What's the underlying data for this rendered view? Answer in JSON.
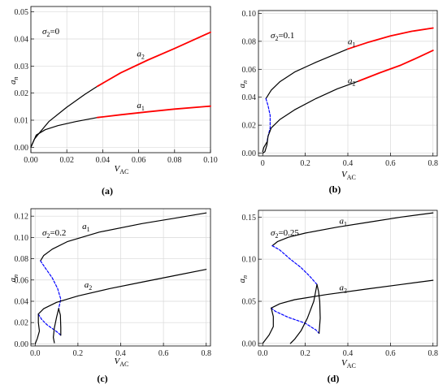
{
  "colors": {
    "stable": "#000000",
    "highlight": "#ff0000",
    "unstable": "#0000ff",
    "grid": "#d9d9d9"
  },
  "chart_data": [
    {
      "type": "line",
      "caption": "(a)",
      "xlabel": "V",
      "xlabel_sub": "AC",
      "ylabel": "a",
      "ylabel_sub": "n",
      "param": {
        "sym": "σ",
        "sub": "2",
        "val": "=0"
      },
      "xlim": [
        0,
        0.1
      ],
      "ylim": [
        -0.002,
        0.052
      ],
      "xticks": [
        0,
        0.02,
        0.04,
        0.06,
        0.08,
        0.1
      ],
      "xtick_labels": [
        "0.00",
        "0.02",
        "0.04",
        "0.06",
        "0.08",
        "0.10"
      ],
      "yticks": [
        0,
        0.01,
        0.02,
        0.03,
        0.04,
        0.05
      ],
      "ytick_labels": [
        "0.00",
        "0.01",
        "0.02",
        "0.03",
        "0.04",
        "0.05"
      ],
      "grid": true,
      "series": [
        {
          "name": "a",
          "sub": "1",
          "style": "stable",
          "points": [
            [
              0,
              0
            ],
            [
              0.003,
              0.0045
            ],
            [
              0.008,
              0.0065
            ],
            [
              0.015,
              0.008
            ],
            [
              0.025,
              0.0095
            ],
            [
              0.037,
              0.011
            ]
          ]
        },
        {
          "name": "a",
          "sub": "1",
          "style": "highlight",
          "points": [
            [
              0.037,
              0.011
            ],
            [
              0.05,
              0.012
            ],
            [
              0.065,
              0.0131
            ],
            [
              0.08,
              0.0141
            ],
            [
              0.1,
              0.0152
            ]
          ]
        },
        {
          "name": "a",
          "sub": "2",
          "style": "stable",
          "points": [
            [
              0,
              0
            ],
            [
              0.002,
              0.003
            ],
            [
              0.005,
              0.0055
            ],
            [
              0.01,
              0.0095
            ],
            [
              0.02,
              0.0148
            ],
            [
              0.03,
              0.0195
            ],
            [
              0.037,
              0.0225
            ]
          ]
        },
        {
          "name": "a",
          "sub": "2",
          "style": "highlight",
          "points": [
            [
              0.037,
              0.0225
            ],
            [
              0.05,
              0.0275
            ],
            [
              0.065,
              0.0322
            ],
            [
              0.08,
              0.0365
            ],
            [
              0.1,
              0.0425
            ]
          ]
        }
      ],
      "annotations": [
        {
          "text": "a",
          "sub": "2",
          "x": 0.059,
          "y": 0.0335
        },
        {
          "text": "a",
          "sub": "1",
          "x": 0.059,
          "y": 0.0145
        }
      ]
    },
    {
      "type": "line",
      "caption": "(b)",
      "xlabel": "V",
      "xlabel_sub": "AC",
      "ylabel": "a",
      "ylabel_sub": "n",
      "param": {
        "sym": "σ",
        "sub": "2",
        "val": "=0.1"
      },
      "xlim": [
        -0.02,
        0.82
      ],
      "ylim": [
        -0.002,
        0.102
      ],
      "xticks": [
        0,
        0.2,
        0.4,
        0.6,
        0.8
      ],
      "xtick_labels": [
        "0",
        "0.2",
        "0.4",
        "0.6",
        "0.8"
      ],
      "yticks": [
        0,
        0.02,
        0.04,
        0.06,
        0.08,
        0.1
      ],
      "ytick_labels": [
        "0.00",
        "0.02",
        "0.04",
        "0.06",
        "0.08",
        "0.10"
      ],
      "grid": true,
      "series": [
        {
          "name": "a",
          "sub": "1",
          "style": "stable",
          "points": [
            [
              0.015,
              0.039
            ],
            [
              0.04,
              0.045
            ],
            [
              0.08,
              0.051
            ],
            [
              0.15,
              0.058
            ],
            [
              0.25,
              0.065
            ],
            [
              0.4,
              0.0745
            ]
          ]
        },
        {
          "name": "a",
          "sub": "1",
          "style": "highlight",
          "points": [
            [
              0.4,
              0.0745
            ],
            [
              0.5,
              0.0795
            ],
            [
              0.6,
              0.0838
            ],
            [
              0.7,
              0.0872
            ],
            [
              0.8,
              0.0895
            ]
          ]
        },
        {
          "name": "a",
          "sub": "1",
          "style": "unstable",
          "points": [
            [
              0.015,
              0.039
            ],
            [
              0.025,
              0.034
            ],
            [
              0.035,
              0.027
            ],
            [
              0.035,
              0.018
            ],
            [
              0.025,
              0.012
            ],
            [
              0.02,
              0.008
            ]
          ]
        },
        {
          "name": "a",
          "sub": "2",
          "style": "stable",
          "points": [
            [
              0,
              0
            ],
            [
              0.01,
              0.001
            ],
            [
              0.02,
              0.006
            ],
            [
              0.025,
              0.012
            ],
            [
              0.04,
              0.018
            ],
            [
              0.08,
              0.024
            ],
            [
              0.15,
              0.031
            ],
            [
              0.25,
              0.039
            ],
            [
              0.35,
              0.046
            ],
            [
              0.45,
              0.0515
            ]
          ]
        },
        {
          "name": "a",
          "sub": "2",
          "style": "highlight",
          "points": [
            [
              0.45,
              0.0515
            ],
            [
              0.55,
              0.0575
            ],
            [
              0.65,
              0.063
            ],
            [
              0.73,
              0.0685
            ],
            [
              0.8,
              0.0735
            ]
          ]
        },
        {
          "name": "",
          "sub": "",
          "style": "stable",
          "points": [
            [
              0.02,
              0.008
            ],
            [
              0.005,
              0.004
            ],
            [
              0,
              0.001
            ]
          ]
        }
      ],
      "annotations": [
        {
          "text": "a",
          "sub": "1",
          "x": 0.4,
          "y": 0.078
        },
        {
          "text": "a",
          "sub": "2",
          "x": 0.4,
          "y": 0.05
        }
      ]
    },
    {
      "type": "line",
      "caption": "(c)",
      "xlabel": "V",
      "xlabel_sub": "AC",
      "ylabel": "a",
      "ylabel_sub": "n",
      "param": {
        "sym": "σ",
        "sub": "2",
        "val": "=0.2"
      },
      "xlim": [
        -0.02,
        0.82
      ],
      "ylim": [
        -0.002,
        0.127
      ],
      "xticks": [
        0,
        0.2,
        0.4,
        0.6,
        0.8
      ],
      "xtick_labels": [
        "0.0",
        "0.2",
        "0.4",
        "0.6",
        "0.8"
      ],
      "yticks": [
        0,
        0.02,
        0.04,
        0.06,
        0.08,
        0.1,
        0.12
      ],
      "ytick_labels": [
        "0.00",
        "0.02",
        "0.04",
        "0.06",
        "0.08",
        "0.10",
        "0.12"
      ],
      "grid": true,
      "series": [
        {
          "name": "a",
          "sub": "1",
          "style": "stable",
          "points": [
            [
              0.025,
              0.078
            ],
            [
              0.04,
              0.083
            ],
            [
              0.08,
              0.089
            ],
            [
              0.15,
              0.096
            ],
            [
              0.3,
              0.105
            ],
            [
              0.5,
              0.113
            ],
            [
              0.65,
              0.118
            ],
            [
              0.8,
              0.123
            ]
          ]
        },
        {
          "name": "a",
          "sub": "1",
          "style": "unstable",
          "points": [
            [
              0.025,
              0.078
            ],
            [
              0.045,
              0.072
            ],
            [
              0.08,
              0.062
            ],
            [
              0.105,
              0.052
            ],
            [
              0.12,
              0.042
            ],
            [
              0.11,
              0.033
            ]
          ]
        },
        {
          "name": "a",
          "sub": "2",
          "style": "stable",
          "points": [
            [
              0.015,
              0.028
            ],
            [
              0.04,
              0.033
            ],
            [
              0.1,
              0.039
            ],
            [
              0.2,
              0.045
            ],
            [
              0.35,
              0.052
            ],
            [
              0.5,
              0.058
            ],
            [
              0.65,
              0.064
            ],
            [
              0.8,
              0.07
            ]
          ]
        },
        {
          "name": "a",
          "sub": "2",
          "style": "unstable",
          "points": [
            [
              0.015,
              0.028
            ],
            [
              0.03,
              0.023
            ],
            [
              0.055,
              0.018
            ],
            [
              0.09,
              0.013
            ],
            [
              0.11,
              0.01
            ],
            [
              0.12,
              0.008
            ]
          ]
        },
        {
          "name": "",
          "sub": "",
          "style": "stable",
          "points": [
            [
              0.11,
              0.033
            ],
            [
              0.1,
              0.025
            ],
            [
              0.09,
              0.015
            ],
            [
              0.085,
              0.006
            ],
            [
              0.09,
              0.001
            ]
          ]
        },
        {
          "name": "",
          "sub": "",
          "style": "stable",
          "points": [
            [
              0.12,
              0.008
            ],
            [
              0.12,
              0.015
            ],
            [
              0.118,
              0.027
            ],
            [
              0.11,
              0.033
            ]
          ]
        },
        {
          "name": "",
          "sub": "",
          "style": "stable",
          "points": [
            [
              0,
              0
            ],
            [
              0.01,
              0.005
            ],
            [
              0.02,
              0.012
            ],
            [
              0.015,
              0.02
            ],
            [
              0.015,
              0.028
            ]
          ]
        }
      ],
      "annotations": [
        {
          "text": "a",
          "sub": "1",
          "x": 0.22,
          "y": 0.108
        },
        {
          "text": "a",
          "sub": "2",
          "x": 0.23,
          "y": 0.053
        }
      ]
    },
    {
      "type": "line",
      "caption": "(d)",
      "xlabel": "V",
      "xlabel_sub": "AC",
      "ylabel": "a",
      "ylabel_sub": "n",
      "param": {
        "sym": "σ",
        "sub": "2",
        "val": "=0.25"
      },
      "xlim": [
        -0.02,
        0.82
      ],
      "ylim": [
        -0.003,
        0.158
      ],
      "xticks": [
        0,
        0.2,
        0.4,
        0.6,
        0.8
      ],
      "xtick_labels": [
        "0.0",
        "0.2",
        "0.4",
        "0.6",
        "0.8"
      ],
      "yticks": [
        0,
        0.05,
        0.1,
        0.15
      ],
      "ytick_labels": [
        "0.00",
        "0.05",
        "0.10",
        "0.15"
      ],
      "grid": true,
      "series": [
        {
          "name": "a",
          "sub": "1",
          "style": "stable",
          "points": [
            [
              0.045,
              0.116
            ],
            [
              0.07,
              0.121
            ],
            [
              0.12,
              0.126
            ],
            [
              0.2,
              0.131
            ],
            [
              0.35,
              0.138
            ],
            [
              0.5,
              0.144
            ],
            [
              0.65,
              0.15
            ],
            [
              0.8,
              0.155
            ]
          ]
        },
        {
          "name": "a",
          "sub": "1",
          "style": "unstable",
          "points": [
            [
              0.045,
              0.116
            ],
            [
              0.08,
              0.111
            ],
            [
              0.13,
              0.1
            ],
            [
              0.18,
              0.09
            ],
            [
              0.22,
              0.08
            ],
            [
              0.255,
              0.07
            ]
          ]
        },
        {
          "name": "a",
          "sub": "2",
          "style": "stable",
          "points": [
            [
              0.04,
              0.042
            ],
            [
              0.08,
              0.047
            ],
            [
              0.15,
              0.052
            ],
            [
              0.3,
              0.058
            ],
            [
              0.5,
              0.065
            ],
            [
              0.65,
              0.07
            ],
            [
              0.8,
              0.075
            ]
          ]
        },
        {
          "name": "a",
          "sub": "2",
          "style": "unstable",
          "points": [
            [
              0.04,
              0.042
            ],
            [
              0.06,
              0.038
            ],
            [
              0.12,
              0.031
            ],
            [
              0.2,
              0.024
            ],
            [
              0.25,
              0.016
            ],
            [
              0.265,
              0.012
            ]
          ]
        },
        {
          "name": "",
          "sub": "",
          "style": "stable",
          "points": [
            [
              0.255,
              0.07
            ],
            [
              0.24,
              0.05
            ],
            [
              0.21,
              0.03
            ],
            [
              0.18,
              0.015
            ],
            [
              0.15,
              0.005
            ],
            [
              0.13,
              0
            ]
          ]
        },
        {
          "name": "",
          "sub": "",
          "style": "stable",
          "points": [
            [
              0.265,
              0.012
            ],
            [
              0.27,
              0.03
            ],
            [
              0.268,
              0.05
            ],
            [
              0.262,
              0.062
            ],
            [
              0.255,
              0.07
            ]
          ]
        },
        {
          "name": "",
          "sub": "",
          "style": "stable",
          "points": [
            [
              0,
              0
            ],
            [
              0.03,
              0.01
            ],
            [
              0.05,
              0.02
            ],
            [
              0.05,
              0.032
            ],
            [
              0.04,
              0.042
            ]
          ]
        }
      ],
      "annotations": [
        {
          "text": "a",
          "sub": "1",
          "x": 0.36,
          "y": 0.142
        },
        {
          "text": "a",
          "sub": "2",
          "x": 0.36,
          "y": 0.063
        }
      ]
    }
  ]
}
